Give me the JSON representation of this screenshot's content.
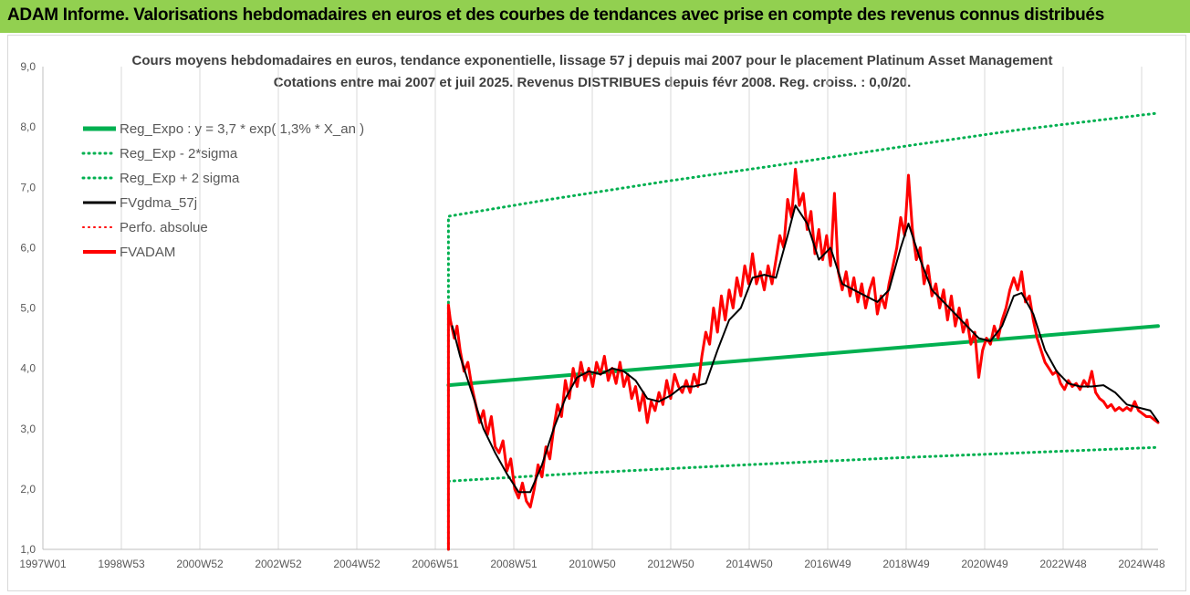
{
  "banner": {
    "title": "ADAM Informe. Valorisations hebdomadaires en euros et des courbes de tendances avec prise en compte des revenus connus distribués"
  },
  "colors": {
    "banner_bg": "#92d050",
    "reg_expo": "#00b050",
    "fvadam": "#ff0000",
    "fvgdma": "#000000",
    "perfo": "#ff0000",
    "grid": "#d9d9d9"
  },
  "chart_data": {
    "type": "line",
    "title_line1": "Cours moyens hebdomadaires en euros, tendance exponentielle, lissage 57 j depuis mai 2007 pour le placement Platinum Asset Management",
    "title_line2": "Cotations entre mai 2007 et juil 2025. Revenus DISTRIBUES depuis févr 2008. Reg. croiss. : 0,0/20.",
    "x_tick_labels": [
      "1997W01",
      "1998W53",
      "2000W52",
      "2002W52",
      "2004W52",
      "2006W51",
      "2008W51",
      "2010W50",
      "2012W50",
      "2014W50",
      "2016W49",
      "2018W49",
      "2020W49",
      "2022W48",
      "2024W48"
    ],
    "y_tick_labels": [
      "1,0",
      "2,0",
      "3,0",
      "4,0",
      "5,0",
      "6,0",
      "7,0",
      "8,0",
      "9,0"
    ],
    "xlim": [
      1997.0,
      2025.6
    ],
    "ylim": [
      1.0,
      9.0
    ],
    "grid": "vertical",
    "legend_position": "top-left",
    "legend": [
      {
        "label": "Reg_Expo : y = 3,7 * exp( 1,3% *  X_an )",
        "color": "#00b050",
        "style": "solid",
        "width": 5
      },
      {
        "label": "Reg_Exp - 2*sigma",
        "color": "#00b050",
        "style": "dotted",
        "width": 3
      },
      {
        "label": "Reg_Exp + 2 sigma",
        "color": "#00b050",
        "style": "dotted",
        "width": 3
      },
      {
        "label": "FVgdma_57j",
        "color": "#000000",
        "style": "solid",
        "width": 3
      },
      {
        "label": "Perfo. absolue",
        "color": "#ff0000",
        "style": "dotted",
        "width": 2
      },
      {
        "label": "FVADAM",
        "color": "#ff0000",
        "style": "solid",
        "width": 4
      }
    ],
    "series": [
      {
        "name": "Reg_Expo : y = 3,7 * exp( 1,3% *  X_an )",
        "color": "#00b050",
        "style": "solid",
        "width": 4,
        "points": [
          [
            2007.4,
            3.72
          ],
          [
            2025.6,
            4.7
          ]
        ]
      },
      {
        "name": "Reg_Exp - 2*sigma",
        "color": "#00b050",
        "style": "dotted",
        "width": 3,
        "points": [
          [
            2007.4,
            2.13
          ],
          [
            2011.0,
            2.27
          ],
          [
            2015.0,
            2.4
          ],
          [
            2019.0,
            2.52
          ],
          [
            2025.6,
            2.69
          ]
        ]
      },
      {
        "name": "Reg_Exp + 2 sigma",
        "color": "#00b050",
        "style": "dotted",
        "width": 3,
        "points": [
          [
            2007.4,
            1.0
          ],
          [
            2007.4,
            6.52
          ],
          [
            2010.0,
            6.8
          ],
          [
            2013.0,
            7.1
          ],
          [
            2016.0,
            7.38
          ],
          [
            2019.0,
            7.67
          ],
          [
            2022.0,
            7.95
          ],
          [
            2025.6,
            8.23
          ]
        ]
      },
      {
        "name": "FVgdma_57j",
        "color": "#000000",
        "style": "solid",
        "width": 2,
        "points": [
          [
            2007.5,
            4.7
          ],
          [
            2007.7,
            4.2
          ],
          [
            2008.0,
            3.6
          ],
          [
            2008.3,
            3.0
          ],
          [
            2008.6,
            2.6
          ],
          [
            2008.9,
            2.25
          ],
          [
            2009.2,
            1.95
          ],
          [
            2009.5,
            1.95
          ],
          [
            2009.8,
            2.4
          ],
          [
            2010.1,
            3.0
          ],
          [
            2010.4,
            3.5
          ],
          [
            2010.7,
            3.85
          ],
          [
            2011.0,
            3.95
          ],
          [
            2011.3,
            3.9
          ],
          [
            2011.6,
            4.0
          ],
          [
            2011.9,
            3.95
          ],
          [
            2012.2,
            3.8
          ],
          [
            2012.5,
            3.5
          ],
          [
            2012.8,
            3.45
          ],
          [
            2013.1,
            3.55
          ],
          [
            2013.4,
            3.7
          ],
          [
            2013.7,
            3.7
          ],
          [
            2014.0,
            3.75
          ],
          [
            2014.3,
            4.3
          ],
          [
            2014.6,
            4.8
          ],
          [
            2014.9,
            5.0
          ],
          [
            2015.2,
            5.5
          ],
          [
            2015.5,
            5.55
          ],
          [
            2015.8,
            5.5
          ],
          [
            2016.1,
            6.2
          ],
          [
            2016.3,
            6.7
          ],
          [
            2016.6,
            6.4
          ],
          [
            2016.9,
            5.8
          ],
          [
            2017.2,
            6.0
          ],
          [
            2017.5,
            5.4
          ],
          [
            2017.8,
            5.3
          ],
          [
            2018.1,
            5.2
          ],
          [
            2018.4,
            5.1
          ],
          [
            2018.7,
            5.3
          ],
          [
            2019.0,
            6.0
          ],
          [
            2019.2,
            6.4
          ],
          [
            2019.5,
            5.8
          ],
          [
            2019.8,
            5.3
          ],
          [
            2020.1,
            5.1
          ],
          [
            2020.4,
            4.9
          ],
          [
            2020.7,
            4.7
          ],
          [
            2021.0,
            4.5
          ],
          [
            2021.3,
            4.45
          ],
          [
            2021.6,
            4.7
          ],
          [
            2021.9,
            5.2
          ],
          [
            2022.1,
            5.25
          ],
          [
            2022.4,
            4.9
          ],
          [
            2022.7,
            4.3
          ],
          [
            2023.0,
            3.95
          ],
          [
            2023.3,
            3.75
          ],
          [
            2023.6,
            3.7
          ],
          [
            2023.9,
            3.7
          ],
          [
            2024.2,
            3.72
          ],
          [
            2024.5,
            3.6
          ],
          [
            2024.8,
            3.4
          ],
          [
            2025.1,
            3.35
          ],
          [
            2025.4,
            3.3
          ],
          [
            2025.6,
            3.12
          ]
        ]
      },
      {
        "name": "FVADAM",
        "color": "#ff0000",
        "style": "solid",
        "width": 3,
        "points": [
          [
            2007.4,
            1.0
          ],
          [
            2007.4,
            5.05
          ],
          [
            2007.45,
            4.8
          ],
          [
            2007.55,
            4.5
          ],
          [
            2007.62,
            4.7
          ],
          [
            2007.7,
            4.3
          ],
          [
            2007.8,
            3.95
          ],
          [
            2007.9,
            4.1
          ],
          [
            2008.0,
            3.7
          ],
          [
            2008.1,
            3.4
          ],
          [
            2008.2,
            3.1
          ],
          [
            2008.3,
            3.3
          ],
          [
            2008.4,
            2.9
          ],
          [
            2008.5,
            3.2
          ],
          [
            2008.6,
            2.7
          ],
          [
            2008.7,
            2.6
          ],
          [
            2008.8,
            2.8
          ],
          [
            2008.9,
            2.3
          ],
          [
            2009.0,
            2.5
          ],
          [
            2009.1,
            2.0
          ],
          [
            2009.2,
            1.85
          ],
          [
            2009.3,
            2.1
          ],
          [
            2009.4,
            1.8
          ],
          [
            2009.5,
            1.7
          ],
          [
            2009.6,
            2.0
          ],
          [
            2009.7,
            2.4
          ],
          [
            2009.8,
            2.2
          ],
          [
            2009.9,
            2.7
          ],
          [
            2010.0,
            2.5
          ],
          [
            2010.1,
            3.0
          ],
          [
            2010.2,
            3.4
          ],
          [
            2010.3,
            3.2
          ],
          [
            2010.4,
            3.8
          ],
          [
            2010.5,
            3.5
          ],
          [
            2010.6,
            4.0
          ],
          [
            2010.7,
            3.7
          ],
          [
            2010.8,
            4.1
          ],
          [
            2010.9,
            3.8
          ],
          [
            2011.0,
            4.0
          ],
          [
            2011.1,
            3.7
          ],
          [
            2011.2,
            4.1
          ],
          [
            2011.3,
            3.9
          ],
          [
            2011.4,
            4.2
          ],
          [
            2011.5,
            3.8
          ],
          [
            2011.6,
            4.0
          ],
          [
            2011.7,
            3.75
          ],
          [
            2011.8,
            4.1
          ],
          [
            2011.9,
            3.7
          ],
          [
            2012.0,
            3.9
          ],
          [
            2012.1,
            3.5
          ],
          [
            2012.2,
            3.7
          ],
          [
            2012.3,
            3.3
          ],
          [
            2012.4,
            3.6
          ],
          [
            2012.5,
            3.1
          ],
          [
            2012.6,
            3.45
          ],
          [
            2012.7,
            3.3
          ],
          [
            2012.8,
            3.6
          ],
          [
            2012.9,
            3.4
          ],
          [
            2013.0,
            3.8
          ],
          [
            2013.1,
            3.5
          ],
          [
            2013.2,
            3.9
          ],
          [
            2013.3,
            3.7
          ],
          [
            2013.4,
            3.6
          ],
          [
            2013.5,
            3.8
          ],
          [
            2013.6,
            3.6
          ],
          [
            2013.7,
            3.9
          ],
          [
            2013.8,
            3.7
          ],
          [
            2013.9,
            4.2
          ],
          [
            2014.0,
            4.6
          ],
          [
            2014.1,
            4.4
          ],
          [
            2014.2,
            5.0
          ],
          [
            2014.3,
            4.6
          ],
          [
            2014.4,
            5.2
          ],
          [
            2014.5,
            4.8
          ],
          [
            2014.6,
            5.3
          ],
          [
            2014.7,
            5.0
          ],
          [
            2014.8,
            5.5
          ],
          [
            2014.9,
            5.2
          ],
          [
            2015.0,
            5.7
          ],
          [
            2015.1,
            5.4
          ],
          [
            2015.2,
            5.9
          ],
          [
            2015.3,
            5.4
          ],
          [
            2015.4,
            5.6
          ],
          [
            2015.5,
            5.3
          ],
          [
            2015.6,
            5.7
          ],
          [
            2015.7,
            5.4
          ],
          [
            2015.8,
            5.8
          ],
          [
            2015.9,
            6.2
          ],
          [
            2016.0,
            6.0
          ],
          [
            2016.1,
            6.8
          ],
          [
            2016.2,
            6.5
          ],
          [
            2016.3,
            7.3
          ],
          [
            2016.4,
            6.7
          ],
          [
            2016.5,
            6.9
          ],
          [
            2016.6,
            6.3
          ],
          [
            2016.7,
            6.6
          ],
          [
            2016.8,
            5.9
          ],
          [
            2016.9,
            6.3
          ],
          [
            2017.0,
            5.8
          ],
          [
            2017.1,
            6.2
          ],
          [
            2017.2,
            5.7
          ],
          [
            2017.3,
            6.9
          ],
          [
            2017.4,
            5.6
          ],
          [
            2017.5,
            5.3
          ],
          [
            2017.6,
            5.6
          ],
          [
            2017.7,
            5.2
          ],
          [
            2017.8,
            5.5
          ],
          [
            2017.9,
            5.1
          ],
          [
            2018.0,
            5.4
          ],
          [
            2018.1,
            5.0
          ],
          [
            2018.2,
            5.3
          ],
          [
            2018.3,
            5.5
          ],
          [
            2018.4,
            4.9
          ],
          [
            2018.5,
            5.2
          ],
          [
            2018.6,
            5.0
          ],
          [
            2018.7,
            5.4
          ],
          [
            2018.8,
            5.7
          ],
          [
            2018.9,
            6.0
          ],
          [
            2019.0,
            6.5
          ],
          [
            2019.1,
            6.2
          ],
          [
            2019.2,
            7.2
          ],
          [
            2019.3,
            6.3
          ],
          [
            2019.4,
            5.8
          ],
          [
            2019.5,
            6.0
          ],
          [
            2019.6,
            5.4
          ],
          [
            2019.7,
            5.7
          ],
          [
            2019.8,
            5.2
          ],
          [
            2019.9,
            5.4
          ],
          [
            2020.0,
            5.0
          ],
          [
            2020.1,
            5.3
          ],
          [
            2020.2,
            4.8
          ],
          [
            2020.3,
            5.2
          ],
          [
            2020.4,
            4.7
          ],
          [
            2020.5,
            5.0
          ],
          [
            2020.6,
            4.6
          ],
          [
            2020.7,
            4.8
          ],
          [
            2020.8,
            4.4
          ],
          [
            2020.9,
            4.6
          ],
          [
            2021.0,
            3.85
          ],
          [
            2021.1,
            4.3
          ],
          [
            2021.2,
            4.5
          ],
          [
            2021.3,
            4.4
          ],
          [
            2021.4,
            4.7
          ],
          [
            2021.5,
            4.5
          ],
          [
            2021.6,
            4.8
          ],
          [
            2021.7,
            5.0
          ],
          [
            2021.8,
            5.3
          ],
          [
            2021.9,
            5.5
          ],
          [
            2022.0,
            5.3
          ],
          [
            2022.1,
            5.6
          ],
          [
            2022.2,
            5.1
          ],
          [
            2022.3,
            5.2
          ],
          [
            2022.4,
            4.8
          ],
          [
            2022.5,
            4.5
          ],
          [
            2022.6,
            4.3
          ],
          [
            2022.7,
            4.1
          ],
          [
            2022.8,
            4.0
          ],
          [
            2022.9,
            3.9
          ],
          [
            2023.0,
            3.95
          ],
          [
            2023.1,
            3.75
          ],
          [
            2023.2,
            3.65
          ],
          [
            2023.3,
            3.8
          ],
          [
            2023.4,
            3.7
          ],
          [
            2023.5,
            3.75
          ],
          [
            2023.6,
            3.65
          ],
          [
            2023.7,
            3.8
          ],
          [
            2023.8,
            3.7
          ],
          [
            2023.9,
            3.95
          ],
          [
            2024.0,
            3.6
          ],
          [
            2024.1,
            3.5
          ],
          [
            2024.2,
            3.45
          ],
          [
            2024.3,
            3.35
          ],
          [
            2024.4,
            3.4
          ],
          [
            2024.5,
            3.3
          ],
          [
            2024.6,
            3.35
          ],
          [
            2024.7,
            3.3
          ],
          [
            2024.8,
            3.35
          ],
          [
            2024.9,
            3.3
          ],
          [
            2025.0,
            3.45
          ],
          [
            2025.1,
            3.3
          ],
          [
            2025.2,
            3.25
          ],
          [
            2025.3,
            3.2
          ],
          [
            2025.4,
            3.2
          ],
          [
            2025.5,
            3.15
          ],
          [
            2025.6,
            3.1
          ]
        ]
      }
    ]
  }
}
